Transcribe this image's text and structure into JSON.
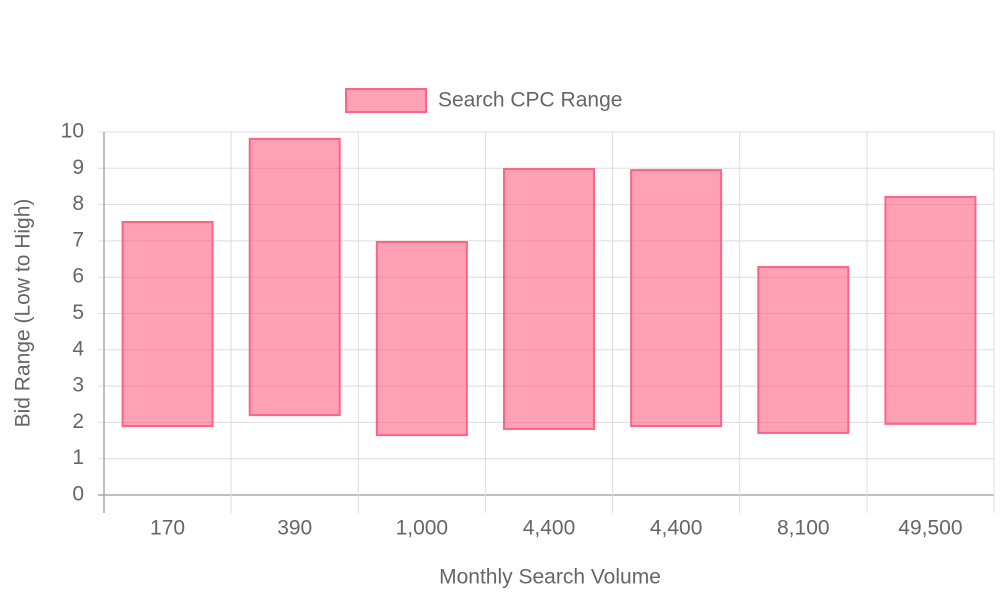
{
  "chart_data": {
    "type": "range-bar",
    "x_label": "Monthly Search Volume",
    "y_label": "Bid Range (Low to High)",
    "categories": [
      "170",
      "390",
      "1,000",
      "4,400",
      "4,400",
      "8,100",
      "49,500"
    ],
    "series": [
      {
        "name": "Search CPC Range",
        "color": "#ff6384",
        "values": [
          [
            1.9,
            7.52
          ],
          [
            2.2,
            9.81
          ],
          [
            1.65,
            6.97
          ],
          [
            1.82,
            8.98
          ],
          [
            1.9,
            8.95
          ],
          [
            1.71,
            6.28
          ],
          [
            1.96,
            8.21
          ]
        ]
      }
    ],
    "ylim": [
      0,
      10
    ],
    "yticks": [
      0,
      1,
      2,
      3,
      4,
      5,
      6,
      7,
      8,
      9,
      10
    ],
    "grid": true,
    "legend": "top"
  }
}
